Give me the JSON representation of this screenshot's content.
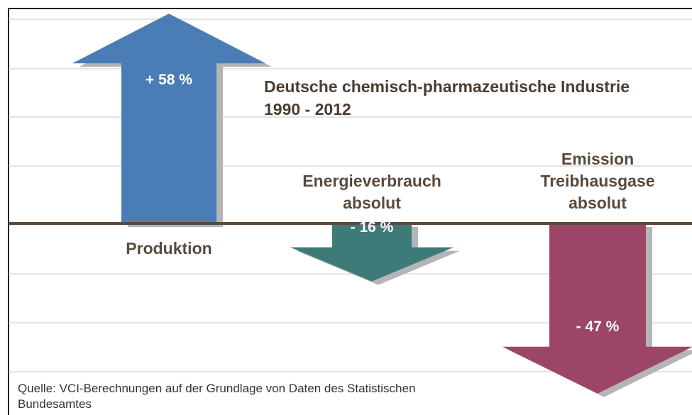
{
  "chart_data": {
    "type": "arrow",
    "title": "Deutsche chemisch-pharmazeutische Industrie",
    "subtitle": "1990 - 2012",
    "categories": [
      "Produktion",
      "Energieverbrauch absolut",
      "Emission Treibhausgase absolut"
    ],
    "values": [
      58,
      -16,
      -47
    ],
    "value_labels": [
      "+ 58 %",
      "- 16 %",
      "- 47 %"
    ],
    "colors": [
      "#4a7db5",
      "#3d7b78",
      "#9c4568"
    ],
    "source": "Quelle: VCI-Berechnungen auf der Grundlage von Daten des Statistischen Bundesamtes"
  }
}
